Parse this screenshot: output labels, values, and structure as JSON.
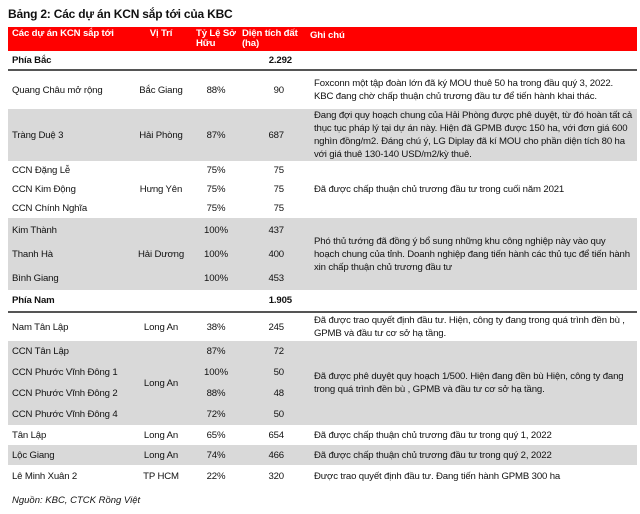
{
  "title": "Bảng 2: Các dự án KCN sắp tới của KBC",
  "header": {
    "name": "Các dự án KCN sắp tới",
    "location": "Vị Trí",
    "ownership": "Tỷ Lệ Sở Hữu",
    "area": "Diện tích đất (ha)",
    "note": "Ghi chú"
  },
  "colors": {
    "header_bg": "#ff0000",
    "shaded_row": "#d9d9d9"
  },
  "sections": [
    {
      "label": "Phía Bắc",
      "total": "2.292",
      "groups": [
        {
          "location": "Bắc Giang",
          "shaded": false,
          "row_height": 38,
          "note": "Foxconn một tập đoàn lớn đã ký MOU thuê 50 ha trong đầu quý 3, 2022. KBC đang chờ chấp thuận chủ trương đầu tư để tiến hành khai thác.",
          "rows": [
            {
              "name": "Quang Châu mở rộng",
              "ownership": "88%",
              "area": "90"
            }
          ]
        },
        {
          "location": "Hải Phòng",
          "shaded": true,
          "row_height": 52,
          "note": "Đang đợi quy hoạch chung của Hải Phòng được phê duyệt, từ đó hoàn tất cả thục tục pháp lý tại dự án này. Hiện đã GPMB được 150 ha, với đơn giá 600 nghìn đồng/m2. Đáng chú ý, LG Diplay đã kí MOU cho phần diện tích 80 ha với giá thuê 130-140 USD/m2/kỳ thuê.",
          "rows": [
            {
              "name": "Tràng Duệ 3",
              "ownership": "87%",
              "area": "687"
            }
          ]
        },
        {
          "location": "Hưng Yên",
          "shaded": false,
          "row_height": 19,
          "note": "Đã được chấp thuận chủ trương đầu tư trong cuối năm 2021",
          "rows": [
            {
              "name": "CCN Đặng Lễ",
              "ownership": "75%",
              "area": "75"
            },
            {
              "name": "CCN Kim Động",
              "ownership": "75%",
              "area": "75"
            },
            {
              "name": "CCN Chính Nghĩa",
              "ownership": "75%",
              "area": "75"
            }
          ]
        },
        {
          "location": "Hải Dương",
          "shaded": true,
          "row_height": 24,
          "note": "Phó thủ tướng đã đồng ý bổ sung những khu công nghiệp này vào quy hoạch chung của tỉnh. Doanh nghiệp đang tiến hành các thủ tục để tiến hành xin chấp thuận chủ trương đầu tư",
          "rows": [
            {
              "name": "Kim Thành",
              "ownership": "100%",
              "area": "437"
            },
            {
              "name": "Thanh Hà",
              "ownership": "100%",
              "area": "400"
            },
            {
              "name": "Bình Giang",
              "ownership": "100%",
              "area": "453"
            }
          ]
        }
      ]
    },
    {
      "label": "Phía Nam",
      "total": "1.905",
      "groups": [
        {
          "location": "Long An",
          "shaded": false,
          "row_height": 28,
          "note": "Đã được trao quyết định đầu tư. Hiện, công ty đang trong quá trình đền bù , GPMB và đầu tư cơ sở hạ tầng.",
          "rows": [
            {
              "name": "Nam Tân Lập",
              "ownership": "38%",
              "area": "245"
            }
          ]
        },
        {
          "location": "Long An",
          "shaded": true,
          "row_height": 21,
          "note": "Đã được phê duyệt quy hoạch 1/500. Hiện đang đền bù Hiện, công ty đang trong quá trình đền bù , GPMB và đầu tư cơ sở hạ tầng.",
          "rows": [
            {
              "name": "CCN Tân Lập",
              "ownership": "87%",
              "area": "72"
            },
            {
              "name": "CCN Phước Vĩnh Đông 1",
              "ownership": "100%",
              "area": "50"
            },
            {
              "name": "CCN Phước Vĩnh Đông 2",
              "ownership": "88%",
              "area": "48"
            },
            {
              "name": "CCN Phước Vĩnh Đông 4",
              "ownership": "72%",
              "area": "50"
            }
          ]
        },
        {
          "location": "Long An",
          "shaded": false,
          "row_height": 20,
          "note": "Đã được chấp thuận chủ trương đầu tư trong quý 1, 2022",
          "rows": [
            {
              "name": "Tân Lập",
              "ownership": "65%",
              "area": "654"
            }
          ]
        },
        {
          "location": "Long An",
          "shaded": true,
          "row_height": 20,
          "note": "Đã được chấp thuận chủ trương đầu tư trong quý 2, 2022",
          "rows": [
            {
              "name": "Lộc Giang",
              "ownership": "74%",
              "area": "466"
            }
          ]
        },
        {
          "location": "TP HCM",
          "shaded": false,
          "row_height": 22,
          "note": "Được trao quyết định đầu tư. Đang tiến hành GPMB 300 ha",
          "rows": [
            {
              "name": "Lê Minh Xuân 2",
              "ownership": "22%",
              "area": "320"
            }
          ]
        }
      ]
    }
  ],
  "source": "Nguồn: KBC, CTCK Rồng Việt"
}
